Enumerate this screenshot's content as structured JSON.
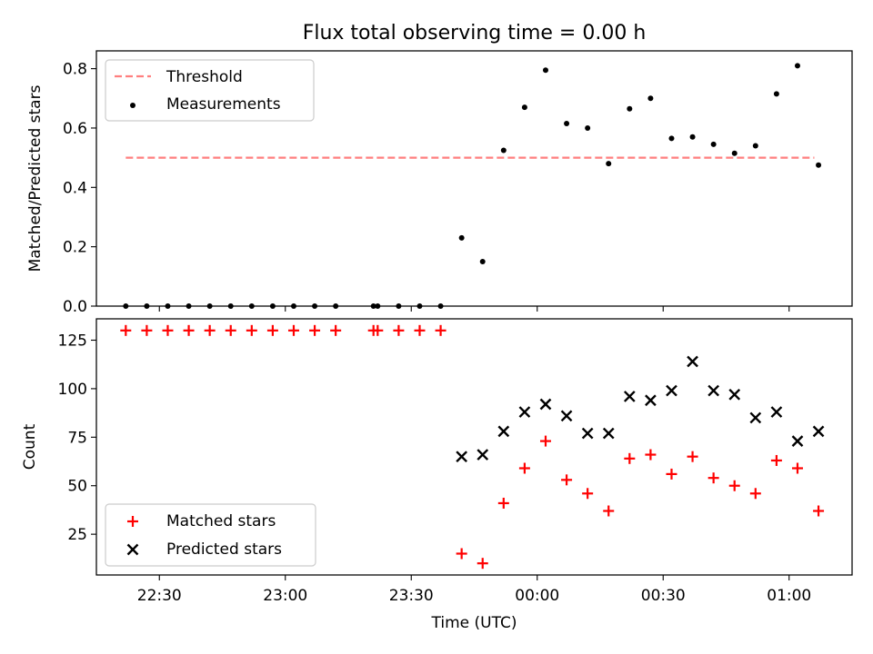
{
  "chart_data": [
    {
      "type": "scatter",
      "title": "Flux total observing time = 0.00 h",
      "xlabel": "",
      "ylabel": "Matched/Predicted stars",
      "xlim": [
        "22:15",
        "01:15"
      ],
      "ylim": [
        0,
        0.86
      ],
      "yticks": [
        "0.0",
        "0.2",
        "0.4",
        "0.6",
        "0.8"
      ],
      "ytick_values": [
        0,
        0.2,
        0.4,
        0.6,
        0.8
      ],
      "legend_position": "upper left",
      "series": [
        {
          "name": "Threshold",
          "kind": "dashed-line",
          "color": "#ff7f7f",
          "x": [
            "22:22",
            "01:06"
          ],
          "y": [
            0.5,
            0.5
          ]
        },
        {
          "name": "Measurements",
          "kind": "dot",
          "color": "#000000",
          "x": [
            "22:22",
            "22:27",
            "22:32",
            "22:37",
            "22:42",
            "22:47",
            "22:52",
            "22:57",
            "23:02",
            "23:07",
            "23:12",
            "23:21",
            "23:22",
            "23:27",
            "23:32",
            "23:37",
            "23:42",
            "23:47",
            "23:52",
            "23:57",
            "00:02",
            "00:07",
            "00:12",
            "00:17",
            "00:22",
            "00:27",
            "00:32",
            "00:37",
            "00:42",
            "00:47",
            "00:52",
            "00:57",
            "01:02",
            "01:07"
          ],
          "y": [
            0,
            0,
            0,
            0,
            0,
            0,
            0,
            0,
            0,
            0,
            0,
            0,
            0,
            0,
            0,
            0,
            0.23,
            0.15,
            0.525,
            0.67,
            0.795,
            0.615,
            0.6,
            0.48,
            0.665,
            0.7,
            0.565,
            0.57,
            0.545,
            0.515,
            0.54,
            0.715,
            0.81,
            0.475
          ]
        }
      ]
    },
    {
      "type": "scatter",
      "title": "",
      "xlabel": "Time (UTC)",
      "ylabel": "Count",
      "xlim": [
        "22:15",
        "01:15"
      ],
      "ylim": [
        4,
        136
      ],
      "yticks": [
        "25",
        "50",
        "75",
        "100",
        "125"
      ],
      "ytick_values": [
        25,
        50,
        75,
        100,
        125
      ],
      "xticks": [
        "22:30",
        "23:00",
        "23:30",
        "00:00",
        "00:30",
        "01:00"
      ],
      "legend_position": "lower left",
      "series": [
        {
          "name": "Matched stars",
          "kind": "plus",
          "color": "#ff0000",
          "x": [
            "22:22",
            "22:27",
            "22:32",
            "22:37",
            "22:42",
            "22:47",
            "22:52",
            "22:57",
            "23:02",
            "23:07",
            "23:12",
            "23:21",
            "23:22",
            "23:27",
            "23:32",
            "23:37",
            "23:42",
            "23:47",
            "23:52",
            "23:57",
            "00:02",
            "00:07",
            "00:12",
            "00:17",
            "00:22",
            "00:27",
            "00:32",
            "00:37",
            "00:42",
            "00:47",
            "00:52",
            "00:57",
            "01:02",
            "01:07"
          ],
          "y": [
            130,
            130,
            130,
            130,
            130,
            130,
            130,
            130,
            130,
            130,
            130,
            130,
            130,
            130,
            130,
            130,
            15,
            10,
            41,
            59,
            73,
            53,
            46,
            37,
            64,
            66,
            56,
            65,
            54,
            50,
            46,
            63,
            59,
            37
          ]
        },
        {
          "name": "Predicted stars",
          "kind": "x",
          "color": "#000000",
          "x": [
            "23:42",
            "23:47",
            "23:52",
            "23:57",
            "00:02",
            "00:07",
            "00:12",
            "00:17",
            "00:22",
            "00:27",
            "00:32",
            "00:37",
            "00:42",
            "00:47",
            "00:52",
            "00:57",
            "01:02",
            "01:07"
          ],
          "y": [
            65,
            66,
            78,
            88,
            92,
            86,
            77,
            77,
            96,
            94,
            99,
            114,
            99,
            97,
            85,
            88,
            73,
            78
          ]
        }
      ]
    }
  ]
}
